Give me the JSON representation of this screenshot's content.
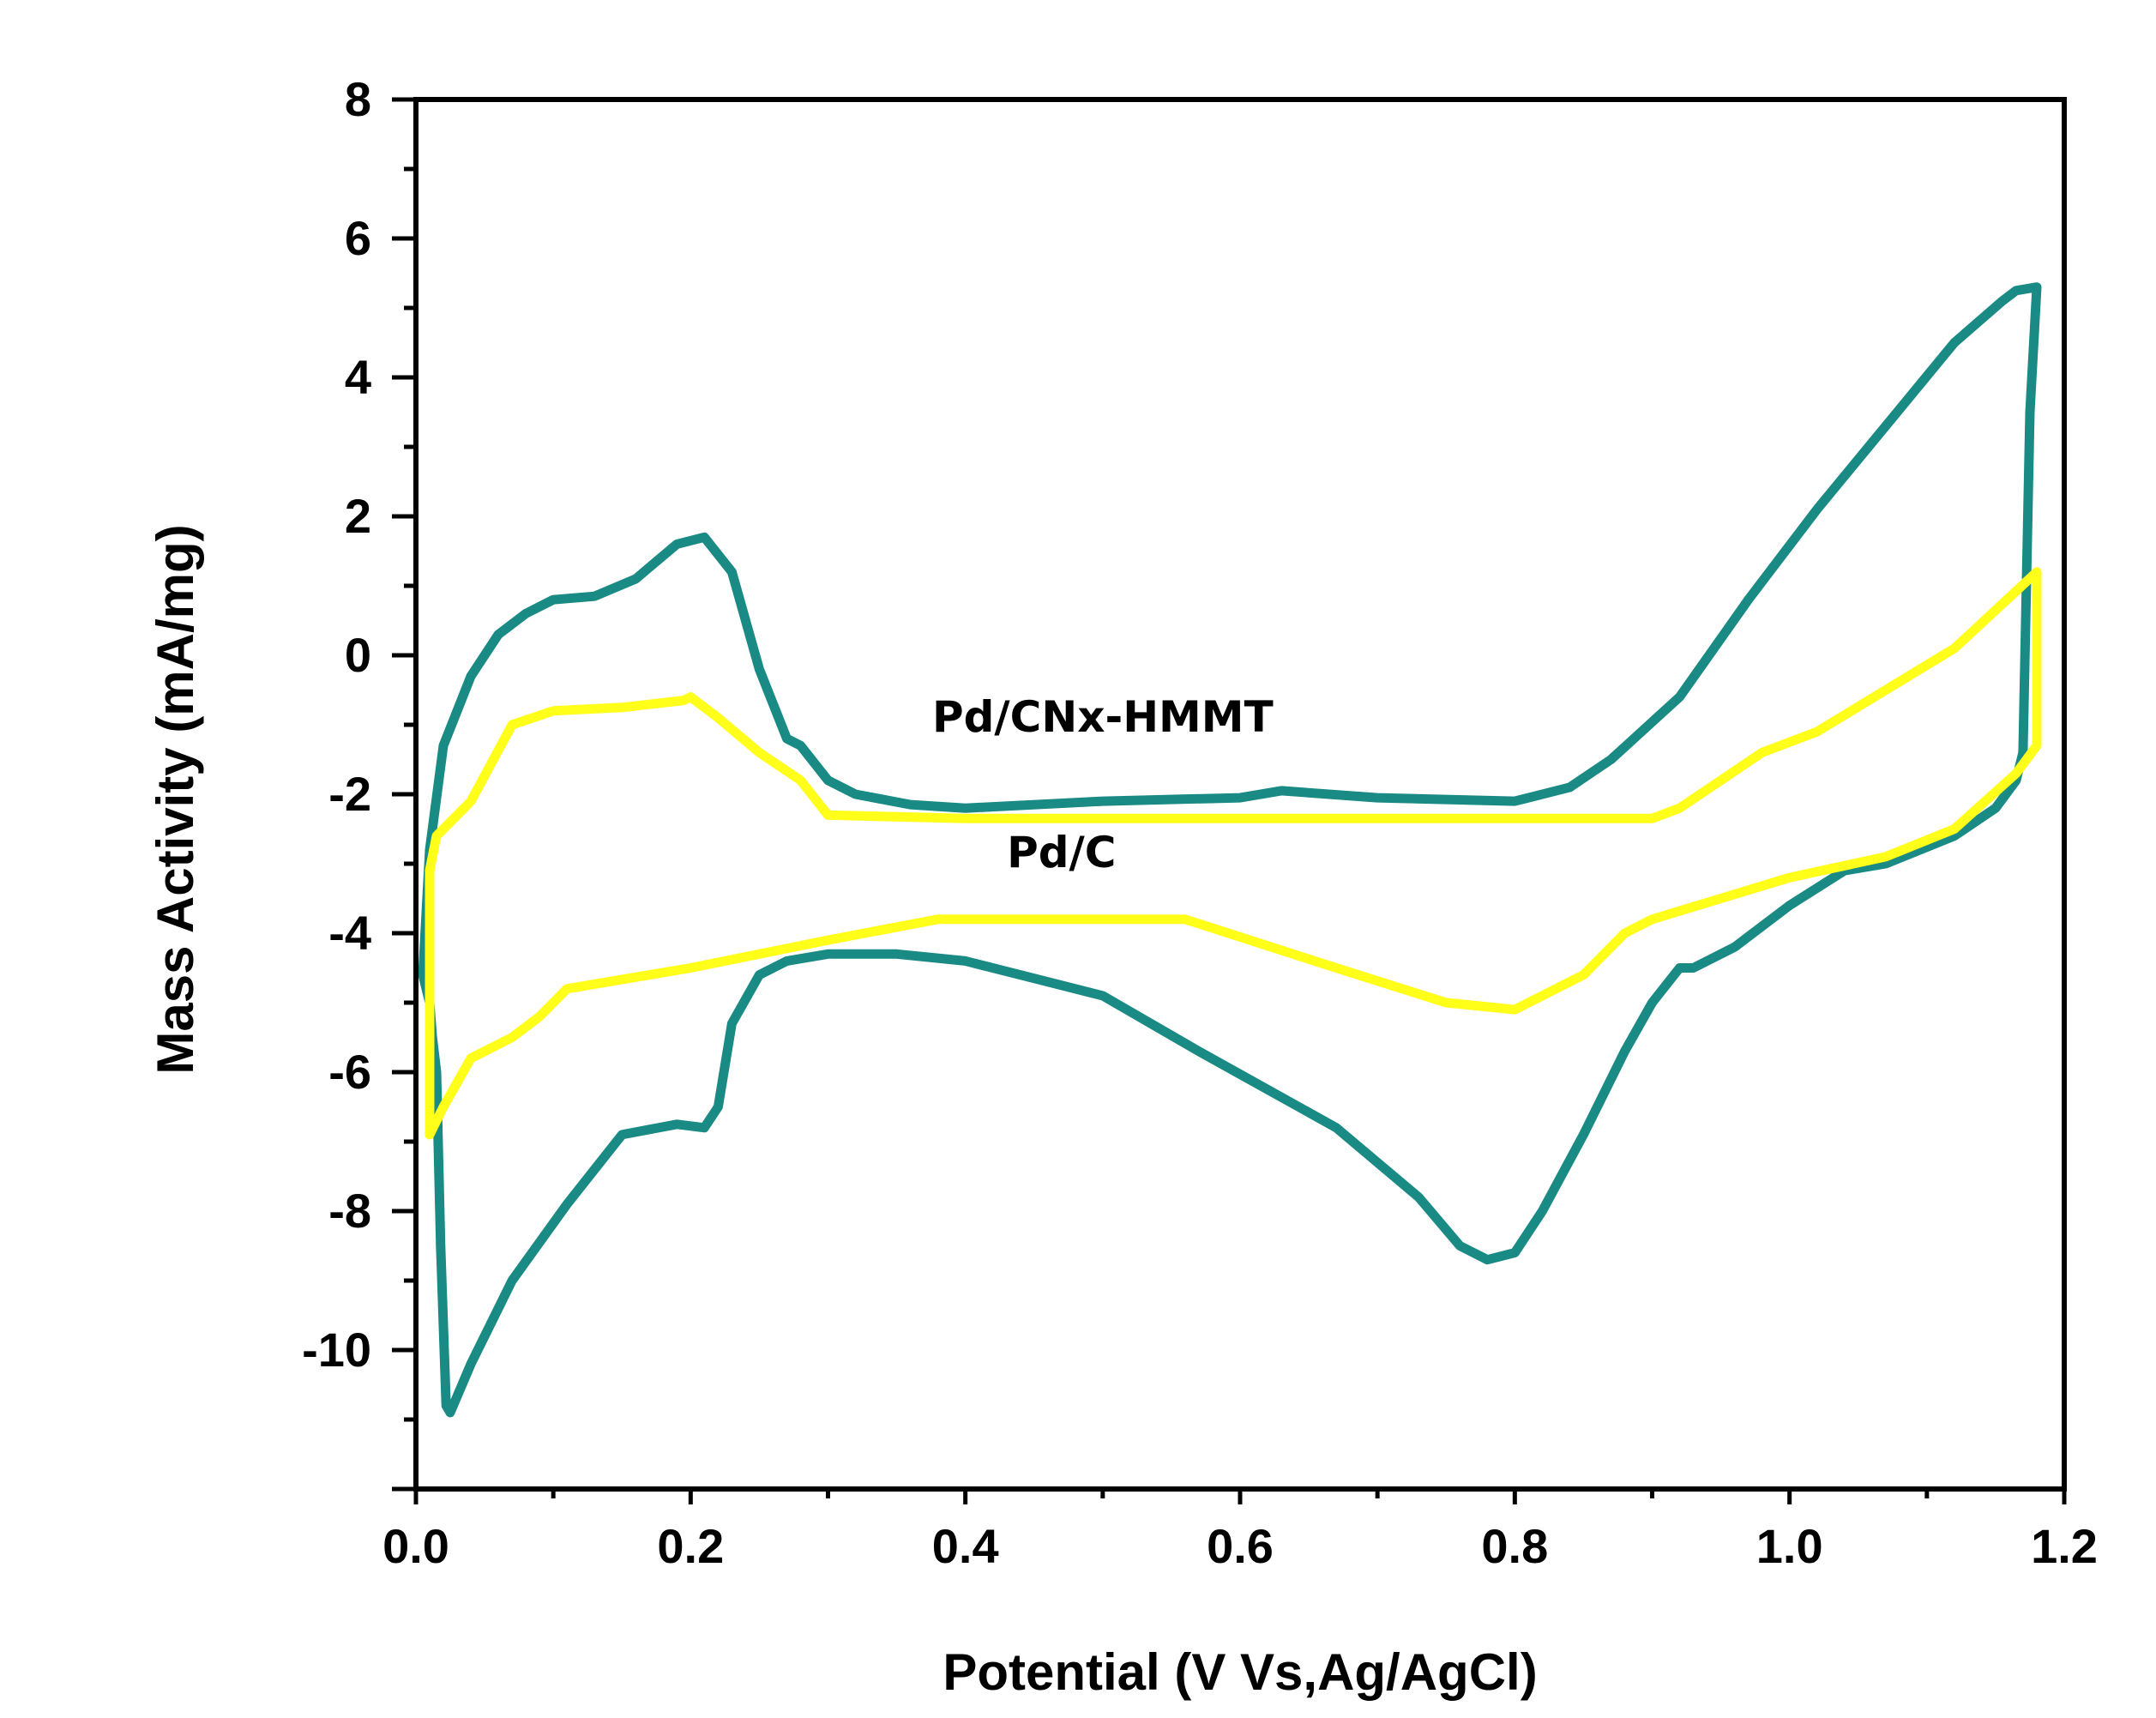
{
  "chart_data": {
    "type": "line",
    "title": "",
    "xlabel": "Potential (V Vs,Ag/AgCl)",
    "ylabel": "Mass Activity (mA/mg)",
    "xlim": [
      0.0,
      1.2
    ],
    "ylim": [
      -12,
      8
    ],
    "xticks": [
      0.0,
      0.2,
      0.4,
      0.6,
      0.8,
      1.0,
      1.2
    ],
    "xtick_labels": [
      "0.0",
      "0.2",
      "0.4",
      "0.6",
      "0.8",
      "1.0",
      "1.2"
    ],
    "yticks": [
      8,
      6,
      4,
      2,
      0,
      -2,
      -4,
      -6,
      -8,
      -10
    ],
    "ytick_labels": [
      "8",
      "6",
      "4",
      "2",
      "0",
      "-2",
      "-4",
      "-6",
      "-8",
      "-10"
    ],
    "grid": false,
    "series": [
      {
        "name": "Pd/CNx-HMMT",
        "color": "#1a8a84",
        "x": [
          0.005,
          0.01,
          0.02,
          0.04,
          0.06,
          0.08,
          0.1,
          0.13,
          0.16,
          0.19,
          0.21,
          0.23,
          0.25,
          0.27,
          0.28,
          0.3,
          0.32,
          0.36,
          0.4,
          0.5,
          0.6,
          0.63,
          0.7,
          0.8,
          0.84,
          0.87,
          0.92,
          0.97,
          1.02,
          1.07,
          1.12,
          1.155,
          1.165,
          1.18,
          1.175,
          1.17,
          1.165,
          1.15,
          1.12,
          1.07,
          1.04,
          1.0,
          0.96,
          0.93,
          0.92,
          0.9,
          0.88,
          0.85,
          0.82,
          0.8,
          0.78,
          0.76,
          0.73,
          0.67,
          0.57,
          0.5,
          0.4,
          0.35,
          0.3,
          0.27,
          0.25,
          0.23,
          0.22,
          0.21,
          0.19,
          0.15,
          0.11,
          0.07,
          0.04,
          0.025,
          0.022,
          0.018,
          0.015,
          0.012,
          0.01,
          0.005
        ],
        "values": [
          -4.6,
          -2.8,
          -1.3,
          -0.3,
          0.3,
          0.6,
          0.8,
          0.85,
          1.1,
          1.6,
          1.7,
          1.2,
          -0.2,
          -1.2,
          -1.3,
          -1.8,
          -2.0,
          -2.15,
          -2.2,
          -2.1,
          -2.05,
          -1.95,
          -2.05,
          -2.1,
          -1.9,
          -1.5,
          -0.6,
          0.8,
          2.1,
          3.3,
          4.5,
          5.1,
          5.25,
          5.3,
          3.5,
          -1.4,
          -1.8,
          -2.2,
          -2.6,
          -3.0,
          -3.1,
          -3.6,
          -4.2,
          -4.5,
          -4.5,
          -5.0,
          -5.7,
          -6.9,
          -8.0,
          -8.6,
          -8.7,
          -8.5,
          -7.8,
          -6.8,
          -5.7,
          -4.9,
          -4.4,
          -4.3,
          -4.3,
          -4.4,
          -4.6,
          -5.3,
          -6.5,
          -6.8,
          -6.75,
          -6.9,
          -7.9,
          -9.0,
          -10.2,
          -10.9,
          -10.8,
          -8.5,
          -6.0,
          -5.5,
          -5.0,
          -4.6
        ]
      },
      {
        "name": "Pd/C",
        "color": "#ffff1a",
        "x": [
          0.01,
          0.015,
          0.04,
          0.07,
          0.1,
          0.15,
          0.195,
          0.2,
          0.22,
          0.25,
          0.28,
          0.3,
          0.4,
          0.6,
          0.8,
          0.9,
          0.92,
          0.95,
          0.98,
          1.02,
          1.07,
          1.12,
          1.18,
          1.18,
          1.165,
          1.12,
          1.07,
          1.0,
          0.95,
          0.9,
          0.88,
          0.85,
          0.8,
          0.75,
          0.67,
          0.56,
          0.38,
          0.3,
          0.2,
          0.11,
          0.1,
          0.09,
          0.07,
          0.05,
          0.04,
          0.02,
          0.01,
          0.01
        ],
        "values": [
          -3.1,
          -2.6,
          -2.1,
          -1.0,
          -0.8,
          -0.75,
          -0.65,
          -0.6,
          -0.9,
          -1.4,
          -1.8,
          -2.3,
          -2.35,
          -2.35,
          -2.35,
          -2.35,
          -2.2,
          -1.8,
          -1.4,
          -1.1,
          -0.5,
          0.1,
          1.2,
          -1.3,
          -1.7,
          -2.5,
          -2.9,
          -3.2,
          -3.5,
          -3.8,
          -4.0,
          -4.6,
          -5.1,
          -5.0,
          -4.5,
          -3.8,
          -3.8,
          -4.1,
          -4.5,
          -4.8,
          -5.0,
          -5.2,
          -5.5,
          -5.7,
          -5.8,
          -6.5,
          -6.9,
          -3.1
        ]
      }
    ],
    "annotations": [
      {
        "text": "Pd/CNx-HMMT",
        "x": 0.5,
        "y": -1.1
      },
      {
        "text": "Pd/C",
        "x": 0.47,
        "y": -3.05
      }
    ]
  }
}
